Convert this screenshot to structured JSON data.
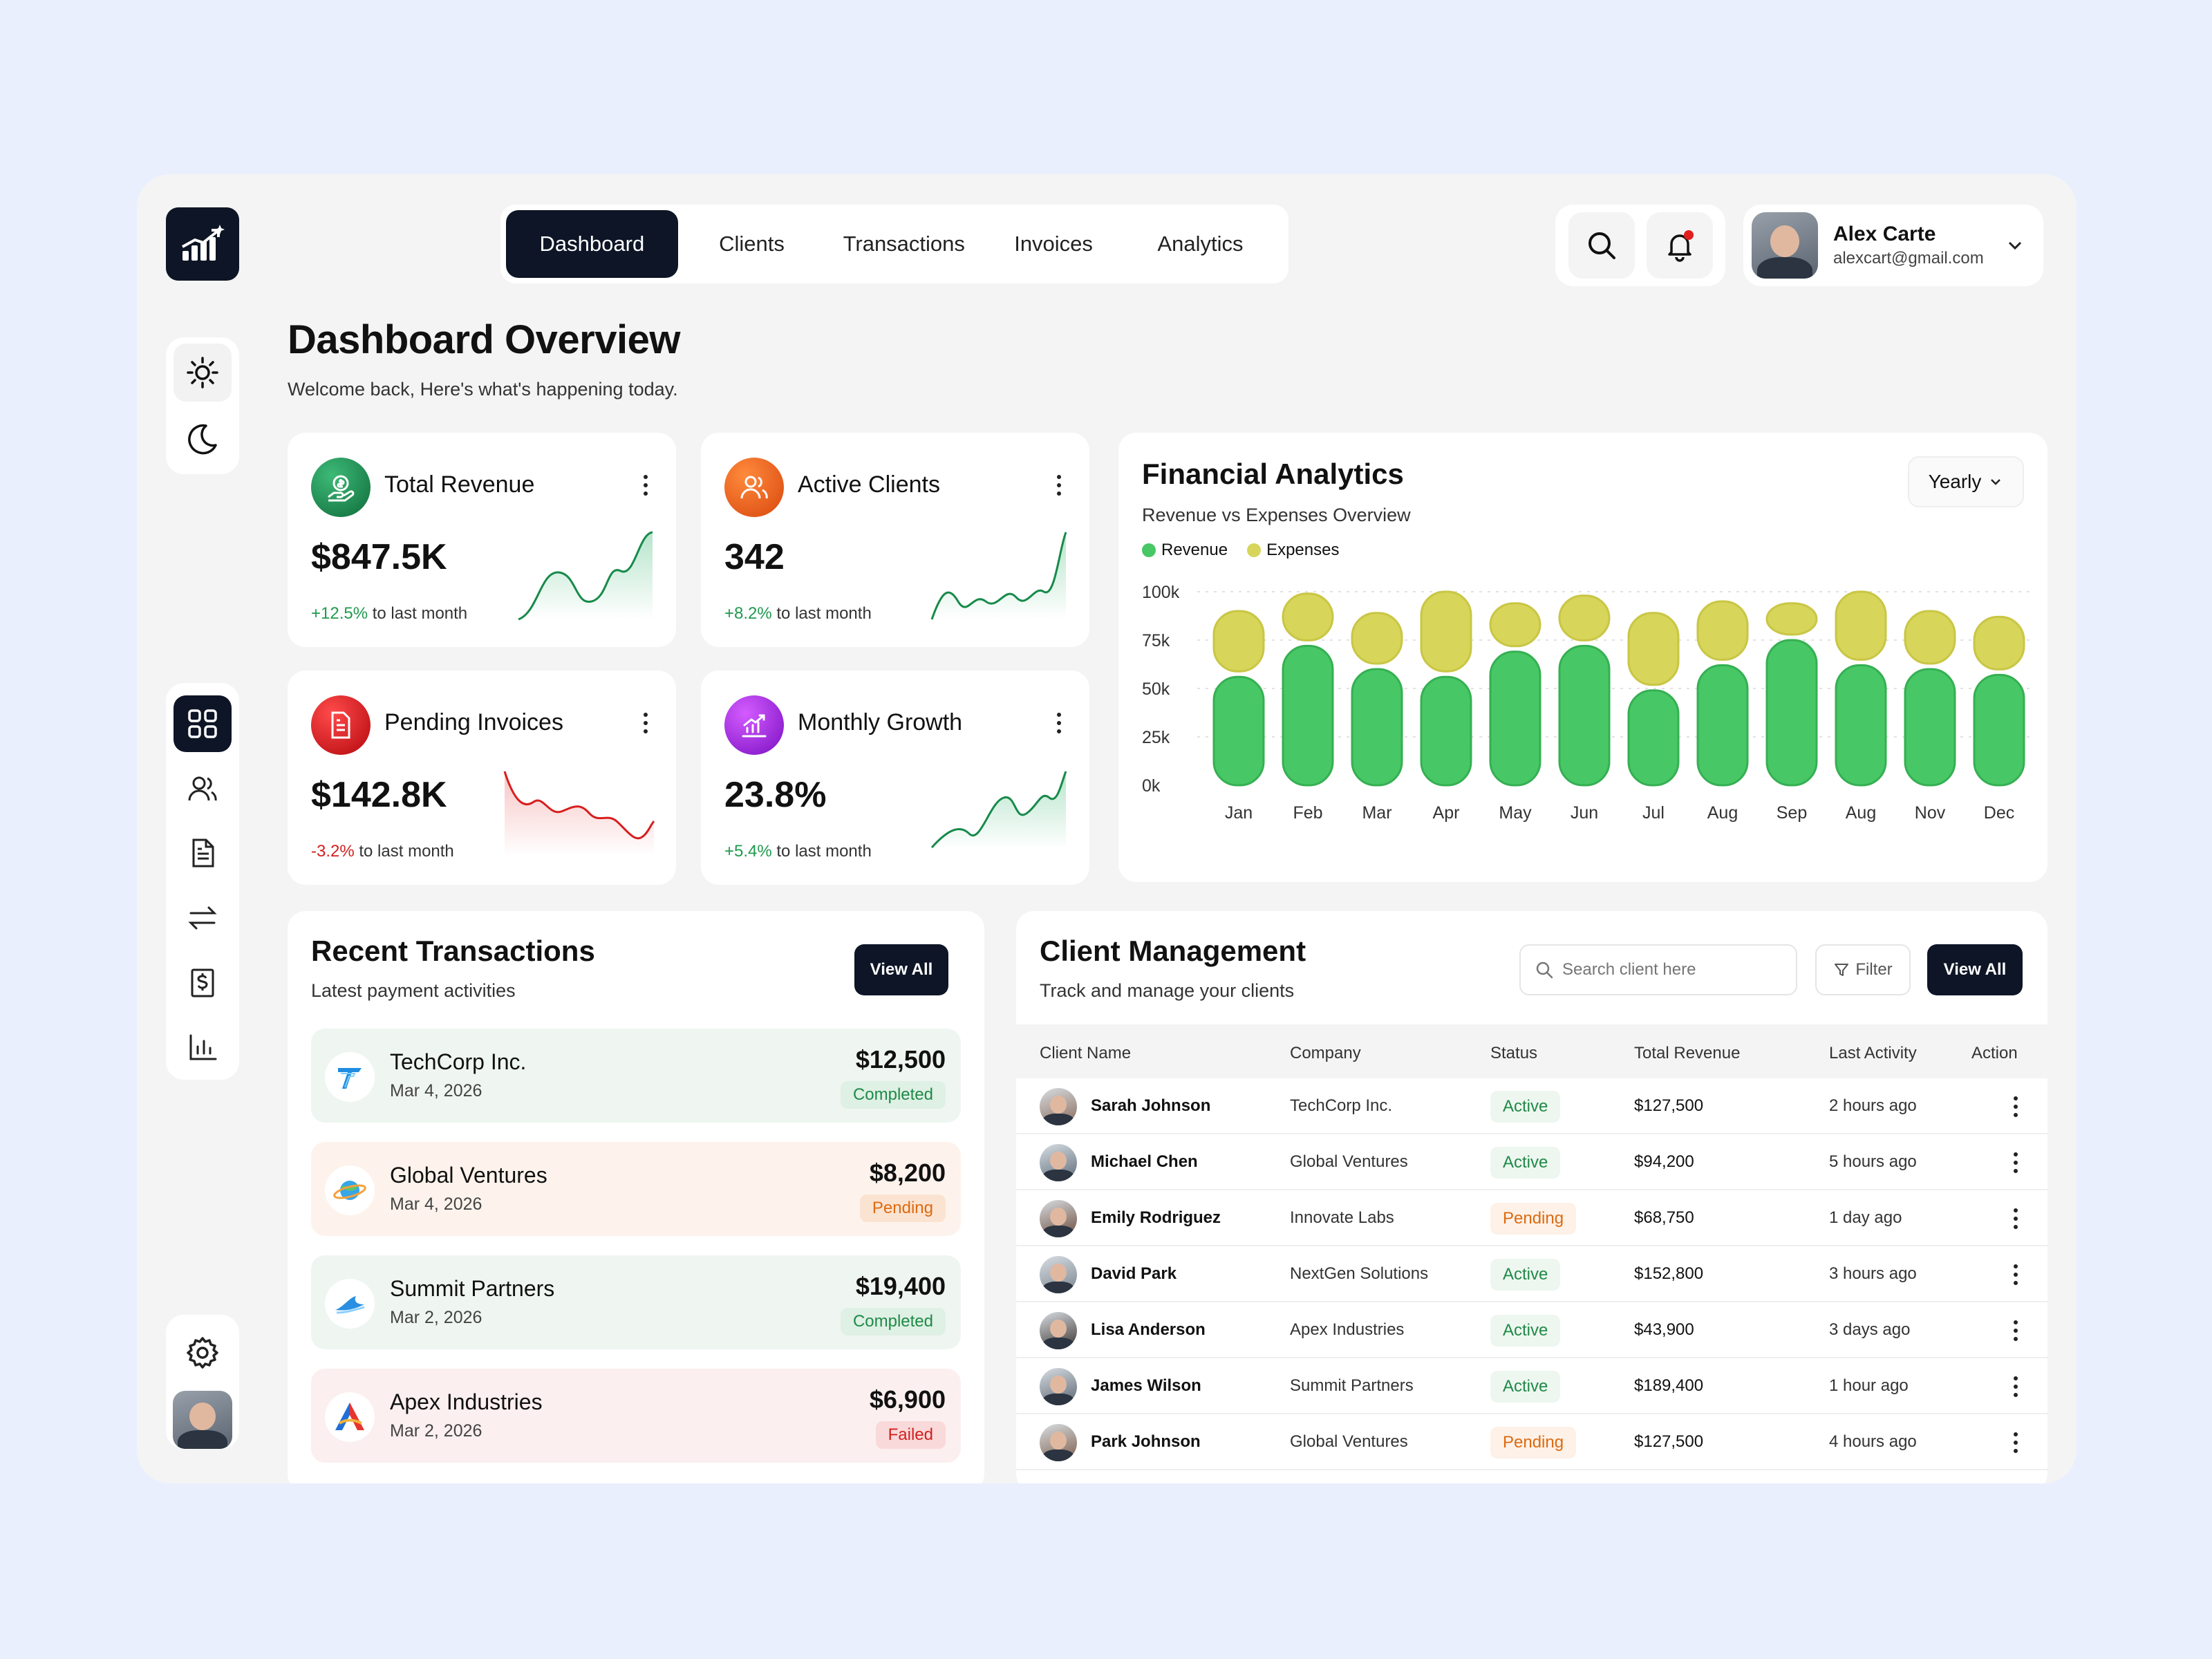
{
  "nav": {
    "tabs": [
      "Dashboard",
      "Clients",
      "Transactions",
      "Invoices",
      "Analytics"
    ],
    "active": "Dashboard"
  },
  "user": {
    "name": "Alex Carte",
    "email": "alexcart@gmail.com"
  },
  "page": {
    "title": "Dashboard Overview",
    "subtitle": "Welcome back, Here's what's happening today."
  },
  "kpis": [
    {
      "title": "Total Revenue",
      "value": "$847.5K",
      "change": "+12.5%",
      "change_suffix": " to last month",
      "trend": "up",
      "color": "#1e8f4f"
    },
    {
      "title": "Active Clients",
      "value": "342",
      "change": "+8.2%",
      "change_suffix": " to last month",
      "trend": "up",
      "color": "#e85a14"
    },
    {
      "title": "Pending Invoices",
      "value": "$142.8K",
      "change": "-3.2%",
      "change_suffix": " to last month",
      "trend": "down",
      "color": "#d0161c"
    },
    {
      "title": "Monthly Growth",
      "value": "23.8%",
      "change": "+5.4%",
      "change_suffix": " to last month",
      "trend": "up",
      "color": "#a822e0"
    }
  ],
  "finance": {
    "title": "Financial Analytics",
    "subtitle": "Revenue vs Expenses Overview",
    "period": "Yearly",
    "legend": [
      "Revenue",
      "Expenses"
    ]
  },
  "chart_data": {
    "type": "bar",
    "stacked": true,
    "categories": [
      "Jan",
      "Feb",
      "Mar",
      "Apr",
      "May",
      "Jun",
      "Jul",
      "Aug",
      "Sep",
      "Aug",
      "Nov",
      "Dec"
    ],
    "series": [
      {
        "name": "Revenue",
        "color": "#48c766",
        "values": [
          56,
          72,
          60,
          56,
          69,
          72,
          49,
          62,
          75,
          62,
          60,
          57
        ]
      },
      {
        "name": "Expenses",
        "color": "#d7d55a",
        "values": [
          34,
          27,
          29,
          44,
          25,
          26,
          40,
          33,
          19,
          38,
          30,
          30
        ]
      }
    ],
    "yticks": [
      "100k",
      "75k",
      "50k",
      "25k",
      "0k"
    ],
    "ylim": [
      0,
      100
    ]
  },
  "transactions": {
    "title": "Recent Transactions",
    "subtitle": "Latest payment activities",
    "view_all": "View All",
    "items": [
      {
        "name": "TechCorp Inc.",
        "date": "Mar 4, 2026",
        "amount": "$12,500",
        "status": "Completed"
      },
      {
        "name": "Global Ventures",
        "date": "Mar 4, 2026",
        "amount": "$8,200",
        "status": "Pending"
      },
      {
        "name": "Summit Partners",
        "date": "Mar 2, 2026",
        "amount": "$19,400",
        "status": "Completed"
      },
      {
        "name": "Apex Industries",
        "date": "Mar 2, 2026",
        "amount": "$6,900",
        "status": "Failed"
      }
    ]
  },
  "clients": {
    "title": "Client Management",
    "subtitle": "Track and manage your clients",
    "search_placeholder": "Search client here",
    "filter": "Filter",
    "view_all": "View All",
    "columns": [
      "Client Name",
      "Company",
      "Status",
      "Total Revenue",
      "Last Activity",
      "Action"
    ],
    "rows": [
      {
        "name": "Sarah Johnson",
        "company": "TechCorp Inc.",
        "status": "Active",
        "revenue": "$127,500",
        "activity": "2 hours ago"
      },
      {
        "name": "Michael Chen",
        "company": "Global Ventures",
        "status": "Active",
        "revenue": "$94,200",
        "activity": "5 hours ago"
      },
      {
        "name": "Emily Rodriguez",
        "company": "Innovate Labs",
        "status": "Pending",
        "revenue": "$68,750",
        "activity": "1 day ago"
      },
      {
        "name": "David Park",
        "company": "NextGen Solutions",
        "status": "Active",
        "revenue": "$152,800",
        "activity": "3 hours ago"
      },
      {
        "name": "Lisa Anderson",
        "company": "Apex Industries",
        "status": "Active",
        "revenue": "$43,900",
        "activity": "3 days ago"
      },
      {
        "name": "James Wilson",
        "company": "Summit Partners",
        "status": "Active",
        "revenue": "$189,400",
        "activity": "1 hour ago"
      },
      {
        "name": "Park Johnson",
        "company": "Global Ventures",
        "status": "Pending",
        "revenue": "$127,500",
        "activity": "4 hours ago"
      }
    ]
  }
}
